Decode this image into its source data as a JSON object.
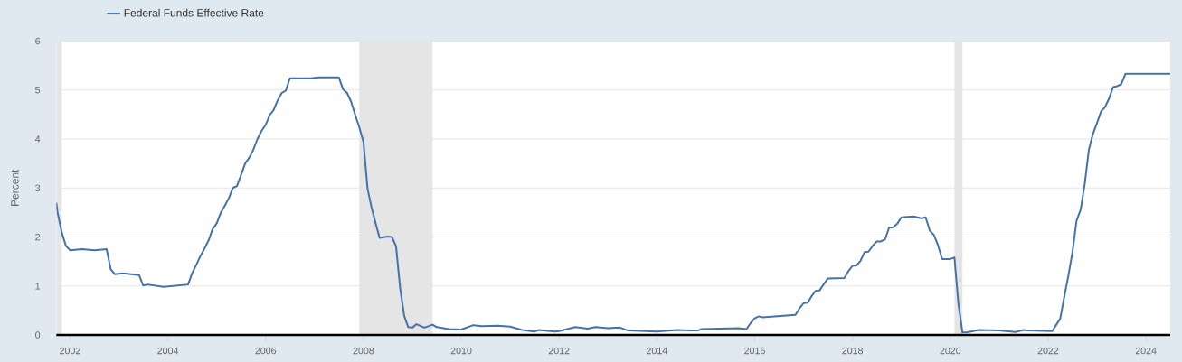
{
  "chart_data": {
    "type": "line",
    "ylabel": "Percent",
    "x": [
      "2001-09-21",
      "2001-10",
      "2001-11",
      "2001-12",
      "2002-01",
      "2002-04",
      "2002-07",
      "2002-10",
      "2002-11",
      "2002-12",
      "2003-02",
      "2003-06",
      "2003-07",
      "2003-08",
      "2003-12",
      "2004-06",
      "2004-07",
      "2004-08",
      "2004-09",
      "2004-10",
      "2004-11",
      "2004-12",
      "2005-01",
      "2005-02",
      "2005-03",
      "2005-04",
      "2005-05",
      "2005-06",
      "2005-07",
      "2005-08",
      "2005-09",
      "2005-10",
      "2005-11",
      "2005-12",
      "2006-01",
      "2006-02",
      "2006-03",
      "2006-04",
      "2006-05",
      "2006-06",
      "2006-07",
      "2006-12",
      "2007-02",
      "2007-07",
      "2007-08",
      "2007-09",
      "2007-10",
      "2007-11",
      "2007-12",
      "2008-01",
      "2008-02",
      "2008-03",
      "2008-04",
      "2008-05",
      "2008-07",
      "2008-08",
      "2008-09",
      "2008-10",
      "2008-11",
      "2008-12",
      "2009-01",
      "2009-02",
      "2009-04",
      "2009-06",
      "2009-07",
      "2009-10",
      "2010-01",
      "2010-04",
      "2010-06",
      "2010-10",
      "2011-01",
      "2011-04",
      "2011-07",
      "2011-08",
      "2011-12",
      "2012-01",
      "2012-05",
      "2012-08",
      "2012-10",
      "2013-01",
      "2013-04",
      "2013-06",
      "2014-01",
      "2014-06",
      "2014-11",
      "2014-12",
      "2015-09",
      "2015-11",
      "2015-12",
      "2016-01",
      "2016-02",
      "2016-03",
      "2016-11",
      "2016-12",
      "2017-01",
      "2017-02",
      "2017-03",
      "2017-04",
      "2017-05",
      "2017-06",
      "2017-07",
      "2017-11",
      "2017-12",
      "2018-01",
      "2018-02",
      "2018-03",
      "2018-04",
      "2018-05",
      "2018-06",
      "2018-07",
      "2018-08",
      "2018-09",
      "2018-10",
      "2018-11",
      "2018-12",
      "2019-01",
      "2019-04",
      "2019-06",
      "2019-07",
      "2019-08",
      "2019-09",
      "2019-10",
      "2019-11",
      "2020-01",
      "2020-02",
      "2020-03",
      "2020-04",
      "2020-05",
      "2020-08",
      "2021-01",
      "2021-05",
      "2021-07",
      "2021-08",
      "2022-02",
      "2022-03",
      "2022-04",
      "2022-05",
      "2022-06",
      "2022-07",
      "2022-08",
      "2022-09",
      "2022-10",
      "2022-11",
      "2022-12",
      "2023-01",
      "2023-02",
      "2023-03",
      "2023-04",
      "2023-05",
      "2023-06",
      "2023-07",
      "2023-08",
      "2024-07"
    ],
    "series": [
      {
        "name": "Federal Funds Effective Rate",
        "color": "#4572a7",
        "values": [
          2.7,
          2.49,
          2.09,
          1.82,
          1.73,
          1.75,
          1.73,
          1.75,
          1.34,
          1.24,
          1.26,
          1.22,
          1.01,
          1.03,
          0.98,
          1.03,
          1.26,
          1.43,
          1.61,
          1.76,
          1.93,
          2.16,
          2.28,
          2.5,
          2.63,
          2.79,
          3.0,
          3.04,
          3.26,
          3.5,
          3.62,
          3.78,
          4.0,
          4.16,
          4.29,
          4.49,
          4.59,
          4.79,
          4.94,
          4.99,
          5.24,
          5.24,
          5.26,
          5.26,
          5.02,
          4.94,
          4.76,
          4.49,
          4.24,
          3.94,
          2.98,
          2.61,
          2.28,
          1.98,
          2.01,
          2.0,
          1.81,
          0.97,
          0.39,
          0.16,
          0.15,
          0.22,
          0.15,
          0.21,
          0.16,
          0.12,
          0.11,
          0.2,
          0.18,
          0.19,
          0.17,
          0.1,
          0.07,
          0.1,
          0.07,
          0.08,
          0.16,
          0.13,
          0.16,
          0.14,
          0.15,
          0.09,
          0.07,
          0.1,
          0.09,
          0.12,
          0.14,
          0.12,
          0.24,
          0.34,
          0.38,
          0.36,
          0.41,
          0.54,
          0.65,
          0.66,
          0.79,
          0.9,
          0.91,
          1.04,
          1.15,
          1.16,
          1.3,
          1.41,
          1.42,
          1.51,
          1.69,
          1.7,
          1.82,
          1.91,
          1.91,
          1.95,
          2.19,
          2.2,
          2.27,
          2.4,
          2.42,
          2.38,
          2.4,
          2.13,
          2.04,
          1.83,
          1.55,
          1.55,
          1.58,
          0.65,
          0.05,
          0.05,
          0.1,
          0.09,
          0.06,
          0.1,
          0.09,
          0.08,
          0.2,
          0.33,
          0.77,
          1.21,
          1.68,
          2.33,
          2.56,
          3.08,
          3.78,
          4.1,
          4.33,
          4.57,
          4.65,
          4.83,
          5.06,
          5.08,
          5.12,
          5.33,
          5.33
        ]
      }
    ],
    "xlim": [
      "2001-09-21",
      "2024-07-01"
    ],
    "ylim": [
      0,
      6
    ],
    "xticks": [
      "2002",
      "2004",
      "2006",
      "2008",
      "2010",
      "2012",
      "2014",
      "2016",
      "2018",
      "2020",
      "2022",
      "2024"
    ],
    "yticks": [
      0,
      1,
      2,
      3,
      4,
      5,
      6
    ],
    "bands": [
      {
        "axis": "x",
        "from": "2001-09-21",
        "to": "2001-11",
        "color": "#e5e5e5"
      },
      {
        "axis": "x",
        "from": "2007-12",
        "to": "2009-06",
        "color": "#e5e5e5"
      },
      {
        "axis": "x",
        "from": "2020-02",
        "to": "2020-04",
        "color": "#e5e5e5"
      }
    ],
    "grid": "y",
    "legend": "top left"
  }
}
